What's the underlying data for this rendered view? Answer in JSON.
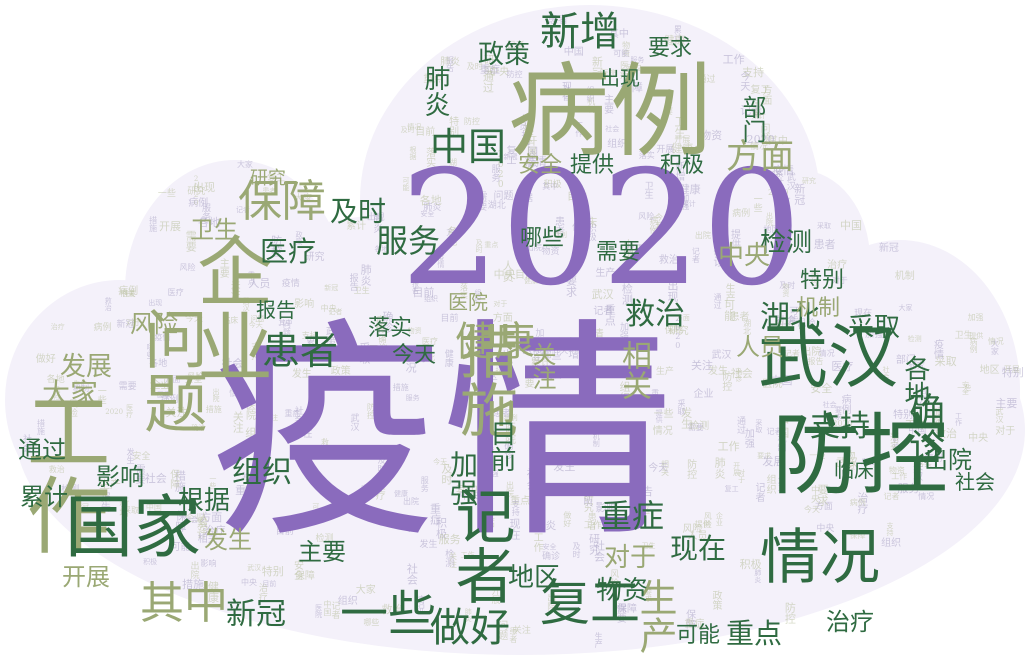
{
  "colors": {
    "purple": "#8a6bbd",
    "green": "#2f6b41",
    "olive": "#9aa874",
    "light": "#c9c2dc"
  },
  "words": [
    "疫情",
    "2020",
    "病例",
    "企业",
    "工作",
    "问题",
    "防控",
    "武汉",
    "国家",
    "措施",
    "记者",
    "情况",
    "患者",
    "健康",
    "保障",
    "中国",
    "新增",
    "政策",
    "方面",
    "湖北",
    "确诊",
    "复工",
    "生产",
    "支持",
    "重症",
    "做好",
    "一些",
    "其中",
    "发展",
    "大家",
    "组织",
    "根据",
    "服务",
    "及时",
    "医疗",
    "卫生",
    "检测",
    "中央",
    "特别",
    "机制",
    "人员",
    "各地",
    "出院",
    "社会",
    "采取",
    "治疗",
    "重点",
    "可能",
    "现在",
    "对于",
    "物资",
    "地区",
    "肺炎",
    "新冠",
    "主要",
    "发生",
    "影响",
    "累计",
    "通过",
    "相关",
    "救治",
    "今天",
    "落实",
    "加强",
    "目前",
    "部门",
    "提供",
    "安全",
    "积极",
    "风险",
    "关注",
    "报告",
    "研究",
    "要求",
    "出现",
    "医院",
    "需要",
    "哪些",
    "开展",
    "临床"
  ]
}
